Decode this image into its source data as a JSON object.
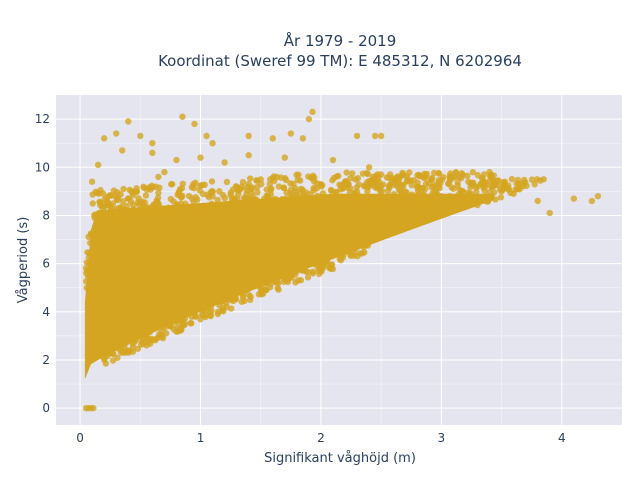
{
  "chart_data": {
    "type": "scatter",
    "title_line1": "År 1979 - 2019",
    "title_line2": "Koordinat (Sweref 99 TM): E 485312, N 6202964",
    "xlabel": "Signifikant våghöjd (m)",
    "ylabel": "Vågperiod (s)",
    "xlim": [
      -0.2,
      4.5
    ],
    "ylim": [
      -0.7,
      13
    ],
    "x_ticks": [
      "0",
      "1",
      "2",
      "3",
      "4"
    ],
    "y_ticks": [
      "0",
      "2",
      "4",
      "6",
      "8",
      "10",
      "12"
    ],
    "grid": true,
    "plot_background": "#e5e5ef",
    "marker_color": "#d4a521",
    "outliers": [
      {
        "x": 0.2,
        "y": 11.2
      },
      {
        "x": 0.3,
        "y": 11.4
      },
      {
        "x": 0.4,
        "y": 11.9
      },
      {
        "x": 0.5,
        "y": 11.3
      },
      {
        "x": 0.6,
        "y": 11.0
      },
      {
        "x": 0.85,
        "y": 12.1
      },
      {
        "x": 0.95,
        "y": 11.8
      },
      {
        "x": 1.05,
        "y": 11.3
      },
      {
        "x": 1.1,
        "y": 11.0
      },
      {
        "x": 1.4,
        "y": 11.3
      },
      {
        "x": 1.6,
        "y": 11.2
      },
      {
        "x": 1.75,
        "y": 11.4
      },
      {
        "x": 1.85,
        "y": 11.2
      },
      {
        "x": 1.9,
        "y": 12.0
      },
      {
        "x": 1.93,
        "y": 12.3
      },
      {
        "x": 2.3,
        "y": 11.3
      },
      {
        "x": 2.45,
        "y": 11.3
      },
      {
        "x": 2.5,
        "y": 11.3
      },
      {
        "x": 0.35,
        "y": 10.7
      },
      {
        "x": 0.6,
        "y": 10.6
      },
      {
        "x": 0.8,
        "y": 10.3
      },
      {
        "x": 1.0,
        "y": 10.4
      },
      {
        "x": 1.2,
        "y": 10.2
      },
      {
        "x": 1.4,
        "y": 10.5
      },
      {
        "x": 1.7,
        "y": 10.4
      },
      {
        "x": 2.1,
        "y": 10.3
      },
      {
        "x": 2.4,
        "y": 10.0
      },
      {
        "x": 2.5,
        "y": 9.7
      },
      {
        "x": 3.15,
        "y": 9.6
      },
      {
        "x": 3.4,
        "y": 9.8
      },
      {
        "x": 0.15,
        "y": 10.1
      },
      {
        "x": 0.1,
        "y": 9.4
      },
      {
        "x": 0.65,
        "y": 9.6
      },
      {
        "x": 3.8,
        "y": 8.6
      },
      {
        "x": 3.9,
        "y": 8.1
      },
      {
        "x": 4.1,
        "y": 8.7
      },
      {
        "x": 4.3,
        "y": 8.8
      },
      {
        "x": 4.25,
        "y": 8.6
      },
      {
        "x": 3.6,
        "y": 8.9
      },
      {
        "x": 3.5,
        "y": 9.0
      },
      {
        "x": 3.3,
        "y": 9.2
      },
      {
        "x": 2.8,
        "y": 9.2
      },
      {
        "x": 2.0,
        "y": 9.3
      },
      {
        "x": 1.5,
        "y": 9.5
      },
      {
        "x": 0.7,
        "y": 9.8
      }
    ],
    "zero_cluster": [
      {
        "x": 0.05,
        "y": 0
      },
      {
        "x": 0.07,
        "y": 0
      },
      {
        "x": 0.09,
        "y": 0
      },
      {
        "x": 0.11,
        "y": 0
      }
    ]
  }
}
